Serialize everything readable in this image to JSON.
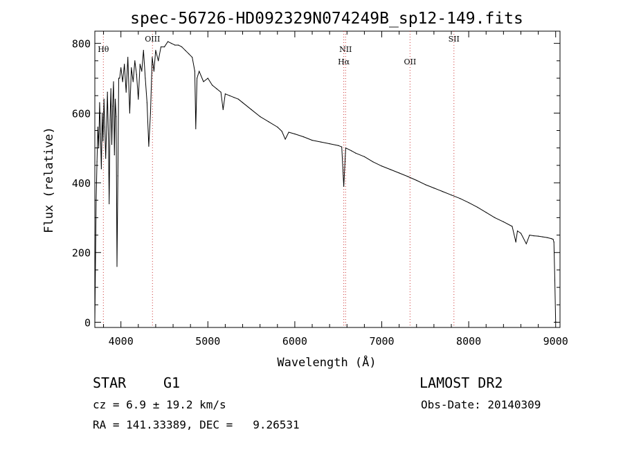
{
  "chart_data": {
    "type": "line",
    "title": "spec-56726-HD092329N074249B_sp12-149.fits",
    "xlabel": "Wavelength (Å)",
    "ylabel": "Flux (relative)",
    "xlim": [
      3700,
      9050
    ],
    "ylim": [
      -15,
      835
    ],
    "xticks": [
      4000,
      5000,
      6000,
      7000,
      8000,
      9000
    ],
    "yticks": [
      0,
      200,
      400,
      600,
      800
    ],
    "grid": false,
    "lines": [
      {
        "name": "Hθ",
        "x": 3798
      },
      {
        "name": "OIII",
        "x": 4363
      },
      {
        "name": "NII",
        "x": 6584
      },
      {
        "name": "Hα",
        "x": 6563
      },
      {
        "name": "OII",
        "x": 7325
      },
      {
        "name": "SII",
        "x": 7830
      }
    ],
    "series": [
      {
        "name": "spectrum",
        "x": [
          3700,
          3715,
          3725,
          3735,
          3745,
          3755,
          3765,
          3775,
          3785,
          3795,
          3805,
          3815,
          3825,
          3835,
          3845,
          3855,
          3865,
          3875,
          3885,
          3895,
          3905,
          3915,
          3925,
          3935,
          3945,
          3955,
          3965,
          3975,
          3985,
          4000,
          4020,
          4040,
          4060,
          4080,
          4101,
          4120,
          4140,
          4160,
          4180,
          4200,
          4220,
          4240,
          4260,
          4280,
          4300,
          4320,
          4340,
          4360,
          4380,
          4400,
          4430,
          4460,
          4500,
          4540,
          4580,
          4620,
          4660,
          4700,
          4740,
          4780,
          4820,
          4850,
          4861,
          4875,
          4900,
          4950,
          5000,
          5050,
          5100,
          5150,
          5175,
          5200,
          5250,
          5300,
          5350,
          5400,
          5500,
          5600,
          5700,
          5800,
          5850,
          5890,
          5930,
          6000,
          6100,
          6200,
          6300,
          6400,
          6500,
          6540,
          6563,
          6585,
          6650,
          6700,
          6800,
          6900,
          7000,
          7100,
          7200,
          7300,
          7400,
          7500,
          7600,
          7700,
          7800,
          7900,
          8000,
          8100,
          8200,
          8300,
          8400,
          8500,
          8542,
          8560,
          8600,
          8662,
          8700,
          8750,
          8800,
          8850,
          8900,
          8950,
          8970,
          8980,
          8990,
          9000
        ],
        "y": [
          0,
          350,
          460,
          560,
          500,
          630,
          540,
          440,
          600,
          520,
          640,
          560,
          470,
          560,
          660,
          540,
          340,
          580,
          670,
          510,
          620,
          690,
          480,
          640,
          590,
          160,
          420,
          700,
          700,
          730,
          690,
          740,
          660,
          760,
          600,
          730,
          690,
          750,
          710,
          640,
          740,
          720,
          780,
          700,
          630,
          505,
          600,
          760,
          720,
          780,
          750,
          790,
          790,
          805,
          800,
          795,
          795,
          790,
          780,
          770,
          760,
          720,
          555,
          700,
          720,
          690,
          700,
          680,
          670,
          660,
          610,
          655,
          650,
          645,
          640,
          630,
          610,
          590,
          575,
          560,
          548,
          525,
          545,
          540,
          532,
          522,
          517,
          512,
          507,
          503,
          390,
          500,
          492,
          485,
          475,
          460,
          448,
          438,
          428,
          418,
          407,
          395,
          385,
          375,
          365,
          355,
          343,
          330,
          315,
          300,
          288,
          275,
          230,
          262,
          255,
          225,
          250,
          248,
          247,
          245,
          243,
          240,
          238,
          230,
          120,
          0
        ]
      }
    ]
  },
  "footer": {
    "object_class": "STAR",
    "subclass": "G1",
    "redshift": "cz = 6.9 ± 19.2 km/s",
    "coords": "RA = 141.33389, DEC =   9.26531",
    "survey": "LAMOST DR2",
    "obs_date": "Obs-Date: 20140309"
  }
}
